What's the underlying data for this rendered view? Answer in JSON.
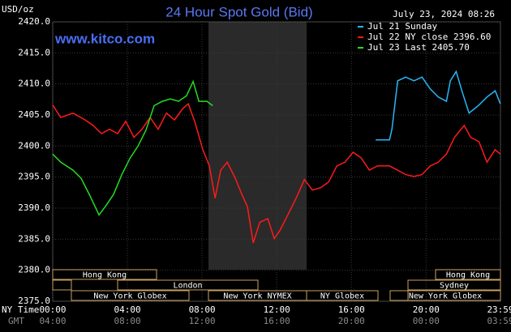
{
  "chart_data": {
    "type": "line",
    "title": "24 Hour Spot Gold (Bid)",
    "y_label": "USD/oz",
    "watermark": "www.kitco.com",
    "timestamp": "July 23, 2024 08:26",
    "x_label": "NY Time",
    "x2_label": "GMT",
    "ylim": [
      2375,
      2420
    ],
    "yticks": [
      {
        "value": 2420,
        "label": "2420.0"
      },
      {
        "value": 2415,
        "label": "2415.0"
      },
      {
        "value": 2410,
        "label": "2410.0"
      },
      {
        "value": 2405,
        "label": "2405.0"
      },
      {
        "value": 2400,
        "label": "2400.0"
      },
      {
        "value": 2395,
        "label": "2395.0"
      },
      {
        "value": 2390,
        "label": "2390.0"
      },
      {
        "value": 2385,
        "label": "2385.0"
      },
      {
        "value": 2380,
        "label": "2380.0"
      },
      {
        "value": 2375,
        "label": "2375.0"
      }
    ],
    "xlim": [
      0,
      23.983
    ],
    "xticks": [
      {
        "value": 0,
        "label": "00:00"
      },
      {
        "value": 4,
        "label": "04:00"
      },
      {
        "value": 8,
        "label": "08:00"
      },
      {
        "value": 12,
        "label": "12:00"
      },
      {
        "value": 16,
        "label": "16:00"
      },
      {
        "value": 20,
        "label": "20:00"
      },
      {
        "value": 23.983,
        "label": "23:59"
      }
    ],
    "x2tick_labels": [
      "04:00",
      "08:00",
      "12:00",
      "16:00",
      "20:00",
      "00:00",
      "03:59"
    ],
    "grid": true,
    "sessions": [
      "Hong Kong",
      "London",
      "New York Globex",
      "New York NYMEX",
      "NY Globex",
      "Hong Kong",
      "Sydney",
      "New York Globex"
    ],
    "series": [
      {
        "name": "Jul 21 Sunday",
        "color": "#29b6f6",
        "x": [
          17.3,
          18.04,
          18.17,
          18.48,
          18.91,
          19.35,
          19.78,
          20.22,
          20.65,
          21.09,
          21.3,
          21.61,
          21.96,
          22.3,
          22.83,
          23.26,
          23.7,
          23.98
        ],
        "values": [
          2401.0,
          2401.0,
          2402.7,
          2410.5,
          2411.1,
          2410.5,
          2411.1,
          2409.2,
          2407.9,
          2407.2,
          2410.5,
          2412.0,
          2408.5,
          2405.3,
          2406.6,
          2407.9,
          2408.9,
          2406.8
        ]
      },
      {
        "name": "Jul 22 NY close 2396.60",
        "color": "#ff1a1a",
        "x": [
          0,
          0.43,
          1.09,
          1.74,
          2.17,
          2.61,
          3.04,
          3.48,
          3.91,
          4.35,
          4.78,
          5.22,
          5.65,
          6.09,
          6.52,
          6.96,
          7.26,
          7.61,
          8.04,
          8.39,
          8.7,
          9.0,
          9.35,
          9.78,
          10.13,
          10.43,
          10.74,
          11.09,
          11.52,
          11.87,
          12.17,
          12.61,
          13.04,
          13.48,
          13.91,
          14.35,
          14.78,
          15.22,
          15.65,
          16.09,
          16.52,
          16.96,
          17.39,
          18.04,
          18.48,
          18.91,
          19.35,
          19.78,
          20.22,
          20.65,
          21.09,
          21.52,
          22.04,
          22.39,
          22.83,
          23.26,
          23.7,
          23.98
        ],
        "values": [
          2406.6,
          2404.6,
          2405.3,
          2404.2,
          2403.3,
          2402.0,
          2402.7,
          2402.0,
          2404.0,
          2401.4,
          2402.7,
          2404.6,
          2402.7,
          2405.3,
          2404.2,
          2406.0,
          2406.8,
          2403.9,
          2399.4,
          2396.8,
          2391.6,
          2396.1,
          2397.4,
          2394.8,
          2392.2,
          2390.2,
          2384.4,
          2387.7,
          2388.3,
          2385.1,
          2386.4,
          2389.0,
          2391.6,
          2394.6,
          2392.9,
          2393.3,
          2394.2,
          2396.8,
          2397.4,
          2399.0,
          2398.1,
          2396.1,
          2396.8,
          2396.8,
          2396.1,
          2395.4,
          2395.1,
          2395.4,
          2396.8,
          2397.4,
          2398.7,
          2401.4,
          2403.3,
          2401.4,
          2400.7,
          2397.4,
          2399.4,
          2398.7
        ]
      },
      {
        "name": "Jul 23 Last 2405.70",
        "color": "#22dd22",
        "x": [
          0,
          0.43,
          1.09,
          1.52,
          1.96,
          2.48,
          2.83,
          3.26,
          3.7,
          4.13,
          4.57,
          5.0,
          5.43,
          5.87,
          6.3,
          6.74,
          7.17,
          7.52,
          7.83,
          8.26,
          8.57
        ],
        "values": [
          2398.7,
          2397.4,
          2396.1,
          2394.8,
          2392.2,
          2388.9,
          2390.3,
          2392.2,
          2395.4,
          2398.0,
          2400.0,
          2402.6,
          2406.5,
          2407.2,
          2407.6,
          2407.2,
          2408.1,
          2410.4,
          2407.2,
          2407.2,
          2406.5
        ]
      }
    ]
  }
}
